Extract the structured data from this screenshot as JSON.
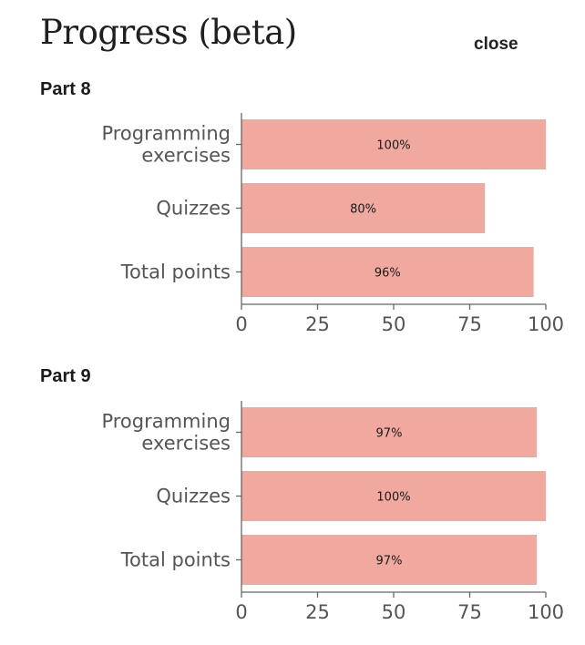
{
  "header": {
    "title": "Progress (beta)",
    "close_label": "close"
  },
  "colors": {
    "bar": "#f1a89f",
    "axis": "#666666"
  },
  "chart_data": [
    {
      "type": "bar",
      "orientation": "horizontal",
      "title": "Part 8",
      "categories": [
        "Programming exercises",
        "Quizzes",
        "Total points"
      ],
      "category_lines": [
        [
          "Programming",
          "exercises"
        ],
        [
          "Quizzes"
        ],
        [
          "Total points"
        ]
      ],
      "values": [
        100,
        80,
        96
      ],
      "value_labels": [
        "100%",
        "80%",
        "96%"
      ],
      "xlim": [
        0,
        100
      ],
      "xticks": [
        0,
        25,
        50,
        75,
        100
      ],
      "grid": false,
      "legend": "none"
    },
    {
      "type": "bar",
      "orientation": "horizontal",
      "title": "Part 9",
      "categories": [
        "Programming exercises",
        "Quizzes",
        "Total points"
      ],
      "category_lines": [
        [
          "Programming",
          "exercises"
        ],
        [
          "Quizzes"
        ],
        [
          "Total points"
        ]
      ],
      "values": [
        97,
        100,
        97
      ],
      "value_labels": [
        "97%",
        "100%",
        "97%"
      ],
      "xlim": [
        0,
        100
      ],
      "xticks": [
        0,
        25,
        50,
        75,
        100
      ],
      "grid": false,
      "legend": "none"
    }
  ]
}
